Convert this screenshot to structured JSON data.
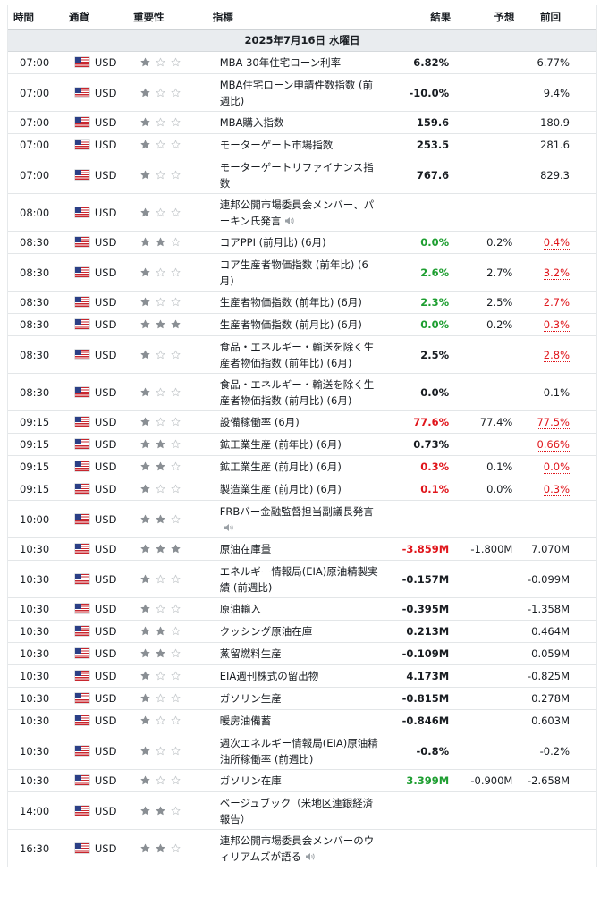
{
  "headers": {
    "time": "時間",
    "currency": "通貨",
    "importance": "重要性",
    "event": "指標",
    "actual": "結果",
    "forecast": "予想",
    "previous": "前回"
  },
  "date_label": "2025年7月16日 水曜日",
  "colors": {
    "positive": "#1e9e31",
    "negative": "#e0151b",
    "star_on": "#8a8f94",
    "star_off": "#c5c9cc"
  },
  "rows": [
    {
      "time": "07:00",
      "currency": "USD",
      "stars": 1,
      "event": "MBA 30年住宅ローン利率",
      "speaker": false,
      "actual": "6.82%",
      "actual_color": "",
      "forecast": "",
      "previous": "6.77%",
      "prev_red": false,
      "lines": 1
    },
    {
      "time": "07:00",
      "currency": "USD",
      "stars": 1,
      "event": "MBA住宅ローン申請件数指数 (前週比)",
      "speaker": false,
      "actual": "-10.0%",
      "actual_color": "",
      "forecast": "",
      "previous": "9.4%",
      "prev_red": false,
      "lines": 2
    },
    {
      "time": "07:00",
      "currency": "USD",
      "stars": 1,
      "event": "MBA購入指数",
      "speaker": false,
      "actual": "159.6",
      "actual_color": "",
      "forecast": "",
      "previous": "180.9",
      "prev_red": false,
      "lines": 1
    },
    {
      "time": "07:00",
      "currency": "USD",
      "stars": 1,
      "event": "モーターゲート市場指数",
      "speaker": false,
      "actual": "253.5",
      "actual_color": "",
      "forecast": "",
      "previous": "281.6",
      "prev_red": false,
      "lines": 1
    },
    {
      "time": "07:00",
      "currency": "USD",
      "stars": 1,
      "event": "モーターゲートリファイナンス指数",
      "speaker": false,
      "actual": "767.6",
      "actual_color": "",
      "forecast": "",
      "previous": "829.3",
      "prev_red": false,
      "lines": 2
    },
    {
      "time": "08:00",
      "currency": "USD",
      "stars": 1,
      "event": "連邦公開市場委員会メンバー、パーキン氏発言",
      "speaker": true,
      "actual": "",
      "actual_color": "",
      "forecast": "",
      "previous": "",
      "prev_red": false,
      "lines": 2
    },
    {
      "time": "08:30",
      "currency": "USD",
      "stars": 2,
      "event": "コアPPI (前月比) (6月)",
      "speaker": false,
      "actual": "0.0%",
      "actual_color": "pos",
      "forecast": "0.2%",
      "previous": "0.4%",
      "prev_red": true,
      "lines": 1
    },
    {
      "time": "08:30",
      "currency": "USD",
      "stars": 1,
      "event": "コア生産者物価指数 (前年比) (6月)",
      "speaker": false,
      "actual": "2.6%",
      "actual_color": "pos",
      "forecast": "2.7%",
      "previous": "3.2%",
      "prev_red": true,
      "lines": 2
    },
    {
      "time": "08:30",
      "currency": "USD",
      "stars": 1,
      "event": "生産者物価指数 (前年比) (6月)",
      "speaker": false,
      "actual": "2.3%",
      "actual_color": "pos",
      "forecast": "2.5%",
      "previous": "2.7%",
      "prev_red": true,
      "lines": 1
    },
    {
      "time": "08:30",
      "currency": "USD",
      "stars": 3,
      "event": "生産者物価指数 (前月比) (6月)",
      "speaker": false,
      "actual": "0.0%",
      "actual_color": "pos",
      "forecast": "0.2%",
      "previous": "0.3%",
      "prev_red": true,
      "lines": 1
    },
    {
      "time": "08:30",
      "currency": "USD",
      "stars": 1,
      "event": "食品・エネルギー・輸送を除く生産者物価指数 (前年比) (6月)",
      "speaker": false,
      "actual": "2.5%",
      "actual_color": "",
      "forecast": "",
      "previous": "2.8%",
      "prev_red": true,
      "lines": 2
    },
    {
      "time": "08:30",
      "currency": "USD",
      "stars": 1,
      "event": "食品・エネルギー・輸送を除く生産者物価指数 (前月比) (6月)",
      "speaker": false,
      "actual": "0.0%",
      "actual_color": "",
      "forecast": "",
      "previous": "0.1%",
      "prev_red": false,
      "lines": 2
    },
    {
      "time": "09:15",
      "currency": "USD",
      "stars": 1,
      "event": "設備稼働率 (6月)",
      "speaker": false,
      "actual": "77.6%",
      "actual_color": "neg",
      "forecast": "77.4%",
      "previous": "77.5%",
      "prev_red": true,
      "lines": 1
    },
    {
      "time": "09:15",
      "currency": "USD",
      "stars": 2,
      "event": "鉱工業生産 (前年比) (6月)",
      "speaker": false,
      "actual": "0.73%",
      "actual_color": "",
      "forecast": "",
      "previous": "0.66%",
      "prev_red": true,
      "lines": 1
    },
    {
      "time": "09:15",
      "currency": "USD",
      "stars": 2,
      "event": "鉱工業生産 (前月比) (6月)",
      "speaker": false,
      "actual": "0.3%",
      "actual_color": "neg",
      "forecast": "0.1%",
      "previous": "0.0%",
      "prev_red": true,
      "lines": 1
    },
    {
      "time": "09:15",
      "currency": "USD",
      "stars": 1,
      "event": "製造業生産 (前月比) (6月)",
      "speaker": false,
      "actual": "0.1%",
      "actual_color": "neg",
      "forecast": "0.0%",
      "previous": "0.3%",
      "prev_red": true,
      "lines": 1
    },
    {
      "time": "10:00",
      "currency": "USD",
      "stars": 2,
      "event": "FRBバー金融監督担当副議長発言",
      "speaker": true,
      "actual": "",
      "actual_color": "",
      "forecast": "",
      "previous": "",
      "prev_red": false,
      "lines": 2
    },
    {
      "time": "10:30",
      "currency": "USD",
      "stars": 3,
      "event": "原油在庫量",
      "speaker": false,
      "actual": "-3.859M",
      "actual_color": "neg",
      "forecast": "-1.800M",
      "previous": "7.070M",
      "prev_red": false,
      "lines": 1
    },
    {
      "time": "10:30",
      "currency": "USD",
      "stars": 1,
      "event": "エネルギー情報局(EIA)原油精製実績 (前週比)",
      "speaker": false,
      "actual": "-0.157M",
      "actual_color": "",
      "forecast": "",
      "previous": "-0.099M",
      "prev_red": false,
      "lines": 2
    },
    {
      "time": "10:30",
      "currency": "USD",
      "stars": 1,
      "event": "原油輸入",
      "speaker": false,
      "actual": "-0.395M",
      "actual_color": "",
      "forecast": "",
      "previous": "-1.358M",
      "prev_red": false,
      "lines": 1
    },
    {
      "time": "10:30",
      "currency": "USD",
      "stars": 2,
      "event": "クッシング原油在庫",
      "speaker": false,
      "actual": "0.213M",
      "actual_color": "",
      "forecast": "",
      "previous": "0.464M",
      "prev_red": false,
      "lines": 1
    },
    {
      "time": "10:30",
      "currency": "USD",
      "stars": 2,
      "event": "蒸留燃料生産",
      "speaker": false,
      "actual": "-0.109M",
      "actual_color": "",
      "forecast": "",
      "previous": "0.059M",
      "prev_red": false,
      "lines": 1
    },
    {
      "time": "10:30",
      "currency": "USD",
      "stars": 1,
      "event": "EIA週刊株式の留出物",
      "speaker": false,
      "actual": "4.173M",
      "actual_color": "",
      "forecast": "",
      "previous": "-0.825M",
      "prev_red": false,
      "lines": 1
    },
    {
      "time": "10:30",
      "currency": "USD",
      "stars": 1,
      "event": "ガソリン生産",
      "speaker": false,
      "actual": "-0.815M",
      "actual_color": "",
      "forecast": "",
      "previous": "0.278M",
      "prev_red": false,
      "lines": 1
    },
    {
      "time": "10:30",
      "currency": "USD",
      "stars": 1,
      "event": "暖房油備蓄",
      "speaker": false,
      "actual": "-0.846M",
      "actual_color": "",
      "forecast": "",
      "previous": "0.603M",
      "prev_red": false,
      "lines": 1
    },
    {
      "time": "10:30",
      "currency": "USD",
      "stars": 1,
      "event": "週次エネルギー情報局(EIA)原油精油所稼働率 (前週比)",
      "speaker": false,
      "actual": "-0.8%",
      "actual_color": "",
      "forecast": "",
      "previous": "-0.2%",
      "prev_red": false,
      "lines": 2
    },
    {
      "time": "10:30",
      "currency": "USD",
      "stars": 1,
      "event": "ガソリン在庫",
      "speaker": false,
      "actual": "3.399M",
      "actual_color": "pos",
      "forecast": "-0.900M",
      "previous": "-2.658M",
      "prev_red": false,
      "lines": 1
    },
    {
      "time": "14:00",
      "currency": "USD",
      "stars": 2,
      "event": "ベージュブック（米地区連銀経済報告）",
      "speaker": false,
      "actual": "",
      "actual_color": "",
      "forecast": "",
      "previous": "",
      "prev_red": false,
      "lines": 2
    },
    {
      "time": "16:30",
      "currency": "USD",
      "stars": 2,
      "event": "連邦公開市場委員会メンバーのウィリアムズが語る",
      "speaker": true,
      "actual": "",
      "actual_color": "",
      "forecast": "",
      "previous": "",
      "prev_red": false,
      "lines": 2
    }
  ]
}
